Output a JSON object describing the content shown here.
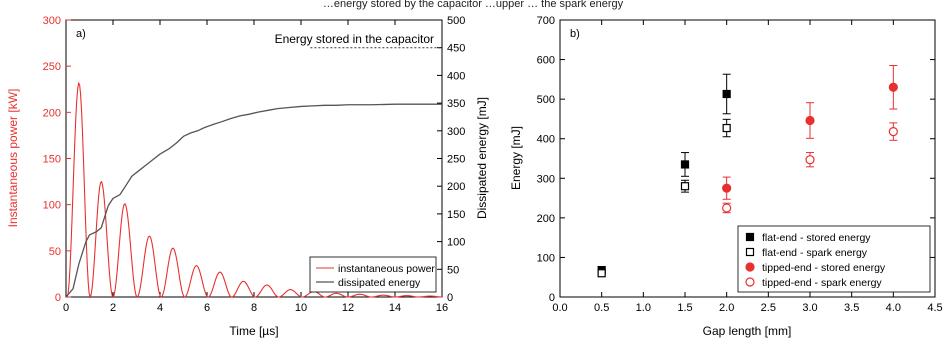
{
  "header_fragment": "…energy stored by the capacitor …upper … the spark energy",
  "chart_data": [
    {
      "type": "line",
      "panel_label": "a)",
      "xlabel": "Time [µs]",
      "ylabel_left": "Instantaneous power [kW]",
      "ylabel_right": "Dissipated energy [mJ]",
      "xlim": [
        0,
        16
      ],
      "ylim_left": [
        0,
        300
      ],
      "ylim_right": [
        0,
        500
      ],
      "x_ticks": [
        0,
        2,
        4,
        6,
        8,
        10,
        12,
        14,
        16
      ],
      "y_ticks_left": [
        0,
        50,
        100,
        150,
        200,
        250,
        300
      ],
      "y_ticks_right": [
        0,
        50,
        100,
        150,
        200,
        250,
        300,
        350,
        400,
        450,
        500
      ],
      "grid": false,
      "legend_position": "bottom-right",
      "colors": {
        "power": "#e8312f",
        "energy": "#555555",
        "left_axis": "#e8312f"
      },
      "annotation": {
        "text": "Energy stored in the capacitor",
        "value": 450,
        "axis": "right"
      },
      "series": [
        {
          "name": "instantaneous power",
          "axis": "left",
          "peaks": [
            [
              0.55,
              232
            ],
            [
              1.5,
              125
            ],
            [
              2.5,
              101
            ],
            [
              3.55,
              66
            ],
            [
              4.55,
              53
            ],
            [
              5.55,
              34
            ],
            [
              6.55,
              27
            ],
            [
              7.55,
              17
            ],
            [
              8.55,
              13
            ],
            [
              9.55,
              8
            ],
            [
              10.55,
              6
            ],
            [
              11.5,
              4
            ],
            [
              12.5,
              3
            ],
            [
              13.5,
              2
            ],
            [
              14.5,
              1.5
            ],
            [
              15.5,
              1
            ]
          ]
        },
        {
          "name": "dissipated energy",
          "axis": "right",
          "points": [
            [
              0,
              0
            ],
            [
              0.3,
              15
            ],
            [
              0.55,
              60
            ],
            [
              0.85,
              100
            ],
            [
              1.0,
              112
            ],
            [
              1.3,
              118
            ],
            [
              1.5,
              125
            ],
            [
              1.8,
              165
            ],
            [
              2.0,
              178
            ],
            [
              2.3,
              185
            ],
            [
              2.5,
              198
            ],
            [
              2.8,
              218
            ],
            [
              3.1,
              228
            ],
            [
              3.4,
              238
            ],
            [
              3.7,
              248
            ],
            [
              4.0,
              258
            ],
            [
              4.4,
              268
            ],
            [
              4.7,
              278
            ],
            [
              5.0,
              290
            ],
            [
              5.3,
              296
            ],
            [
              5.6,
              300
            ],
            [
              5.9,
              306
            ],
            [
              6.3,
              312
            ],
            [
              6.6,
              316
            ],
            [
              7.0,
              322
            ],
            [
              7.4,
              327
            ],
            [
              7.8,
              330
            ],
            [
              8.2,
              334
            ],
            [
              8.6,
              337
            ],
            [
              9.0,
              340
            ],
            [
              9.5,
              342
            ],
            [
              10.0,
              344
            ],
            [
              10.5,
              345
            ],
            [
              11.0,
              346
            ],
            [
              11.5,
              346
            ],
            [
              12.0,
              347
            ],
            [
              13.0,
              347
            ],
            [
              14.0,
              348
            ],
            [
              15.0,
              348
            ],
            [
              16.0,
              348
            ]
          ]
        }
      ]
    },
    {
      "type": "scatter",
      "panel_label": "b)",
      "xlabel": "Gap length [mm]",
      "ylabel": "Energy [mJ]",
      "xlim": [
        0,
        4.5
      ],
      "ylim": [
        0,
        700
      ],
      "x_ticks": [
        "0.0",
        "0.5",
        "1.0",
        "1.5",
        "2.0",
        "2.5",
        "3.0",
        "3.5",
        "4.0",
        "4.5"
      ],
      "y_ticks": [
        0,
        100,
        200,
        300,
        400,
        500,
        600,
        700
      ],
      "grid": false,
      "legend_position": "bottom-right",
      "colors": {
        "flat": "#000000",
        "tipped": "#e8312f"
      },
      "series": [
        {
          "name": "flat-end - stored energy",
          "marker": "square",
          "filled": true,
          "color": "flat",
          "points": [
            [
              0.5,
              68,
              0
            ],
            [
              1.5,
              335,
              30
            ],
            [
              2.0,
              513,
              50
            ]
          ]
        },
        {
          "name": "flat-end - spark energy",
          "marker": "square",
          "filled": false,
          "color": "flat",
          "points": [
            [
              0.5,
              60,
              0
            ],
            [
              1.5,
              280,
              15
            ],
            [
              2.0,
              427,
              22
            ]
          ]
        },
        {
          "name": "tipped-end - stored energy",
          "marker": "circle",
          "filled": true,
          "color": "tipped",
          "points": [
            [
              2.0,
              275,
              28
            ],
            [
              3.0,
              446,
              45
            ],
            [
              4.0,
              530,
              55
            ]
          ]
        },
        {
          "name": "tipped-end - spark energy",
          "marker": "circle",
          "filled": false,
          "color": "tipped",
          "points": [
            [
              2.0,
              225,
              12
            ],
            [
              3.0,
              347,
              18
            ],
            [
              4.0,
              418,
              22
            ]
          ]
        }
      ]
    }
  ]
}
